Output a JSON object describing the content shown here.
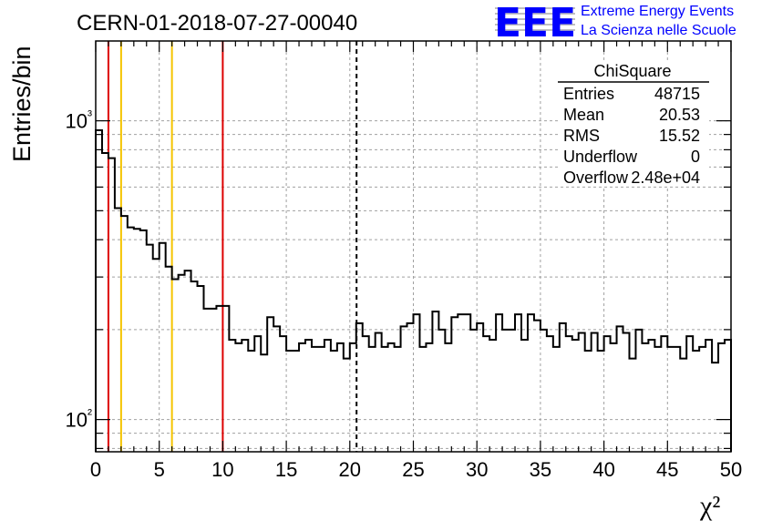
{
  "chart_data": {
    "type": "histogram",
    "title": "CERN-01-2018-07-27-00040",
    "xlabel": "χ²",
    "ylabel": "Entries/bin",
    "xlim": [
      0,
      50
    ],
    "ylim": [
      78,
      1850
    ],
    "yscale": "log",
    "grid": true,
    "x_ticks": [
      0,
      5,
      10,
      15,
      20,
      25,
      30,
      35,
      40,
      45,
      50
    ],
    "x_tick_labels": [
      "0",
      "5",
      "10",
      "15",
      "20",
      "25",
      "30",
      "35",
      "40",
      "45",
      "50"
    ],
    "y_ticks": [
      100,
      1000
    ],
    "y_tick_labels": [
      "10²",
      "10³"
    ],
    "bin_width": 0.5,
    "bin_start": 0,
    "values": [
      930,
      780,
      750,
      510,
      480,
      440,
      435,
      430,
      385,
      345,
      390,
      325,
      295,
      305,
      315,
      290,
      280,
      235,
      235,
      240,
      240,
      185,
      180,
      185,
      170,
      190,
      165,
      220,
      205,
      190,
      170,
      170,
      180,
      185,
      175,
      175,
      185,
      170,
      180,
      160,
      180,
      210,
      190,
      175,
      195,
      175,
      180,
      175,
      205,
      210,
      225,
      175,
      180,
      230,
      200,
      180,
      220,
      225,
      225,
      200,
      210,
      190,
      185,
      225,
      200,
      200,
      225,
      185,
      225,
      215,
      200,
      190,
      175,
      210,
      190,
      185,
      195,
      170,
      195,
      170,
      190,
      180,
      205,
      195,
      160,
      200,
      180,
      185,
      175,
      190,
      175,
      175,
      160,
      190,
      170,
      175,
      185,
      155,
      180,
      185
    ],
    "vertical_lines": [
      {
        "x": 1,
        "color": "#dd0000",
        "style": "solid"
      },
      {
        "x": 2,
        "color": "#f5c400",
        "style": "solid"
      },
      {
        "x": 6,
        "color": "#f5c400",
        "style": "solid"
      },
      {
        "x": 10,
        "color": "#dd0000",
        "style": "solid"
      },
      {
        "x": 20.53,
        "color": "#000000",
        "style": "dashed"
      }
    ],
    "line_color": "#000000"
  },
  "stats_box": {
    "title": "ChiSquare",
    "rows": [
      {
        "label": "Entries",
        "value": "48715"
      },
      {
        "label": "Mean",
        "value": "20.53"
      },
      {
        "label": "RMS",
        "value": "15.52"
      },
      {
        "label": "Underflow",
        "value": "0"
      },
      {
        "label": "Overflow",
        "value": "2.48e+04"
      }
    ]
  },
  "logo": {
    "text": "EEE",
    "line1": "Extreme Energy Events",
    "line2": "La Scienza nelle Scuole",
    "color": "#0000ff"
  }
}
